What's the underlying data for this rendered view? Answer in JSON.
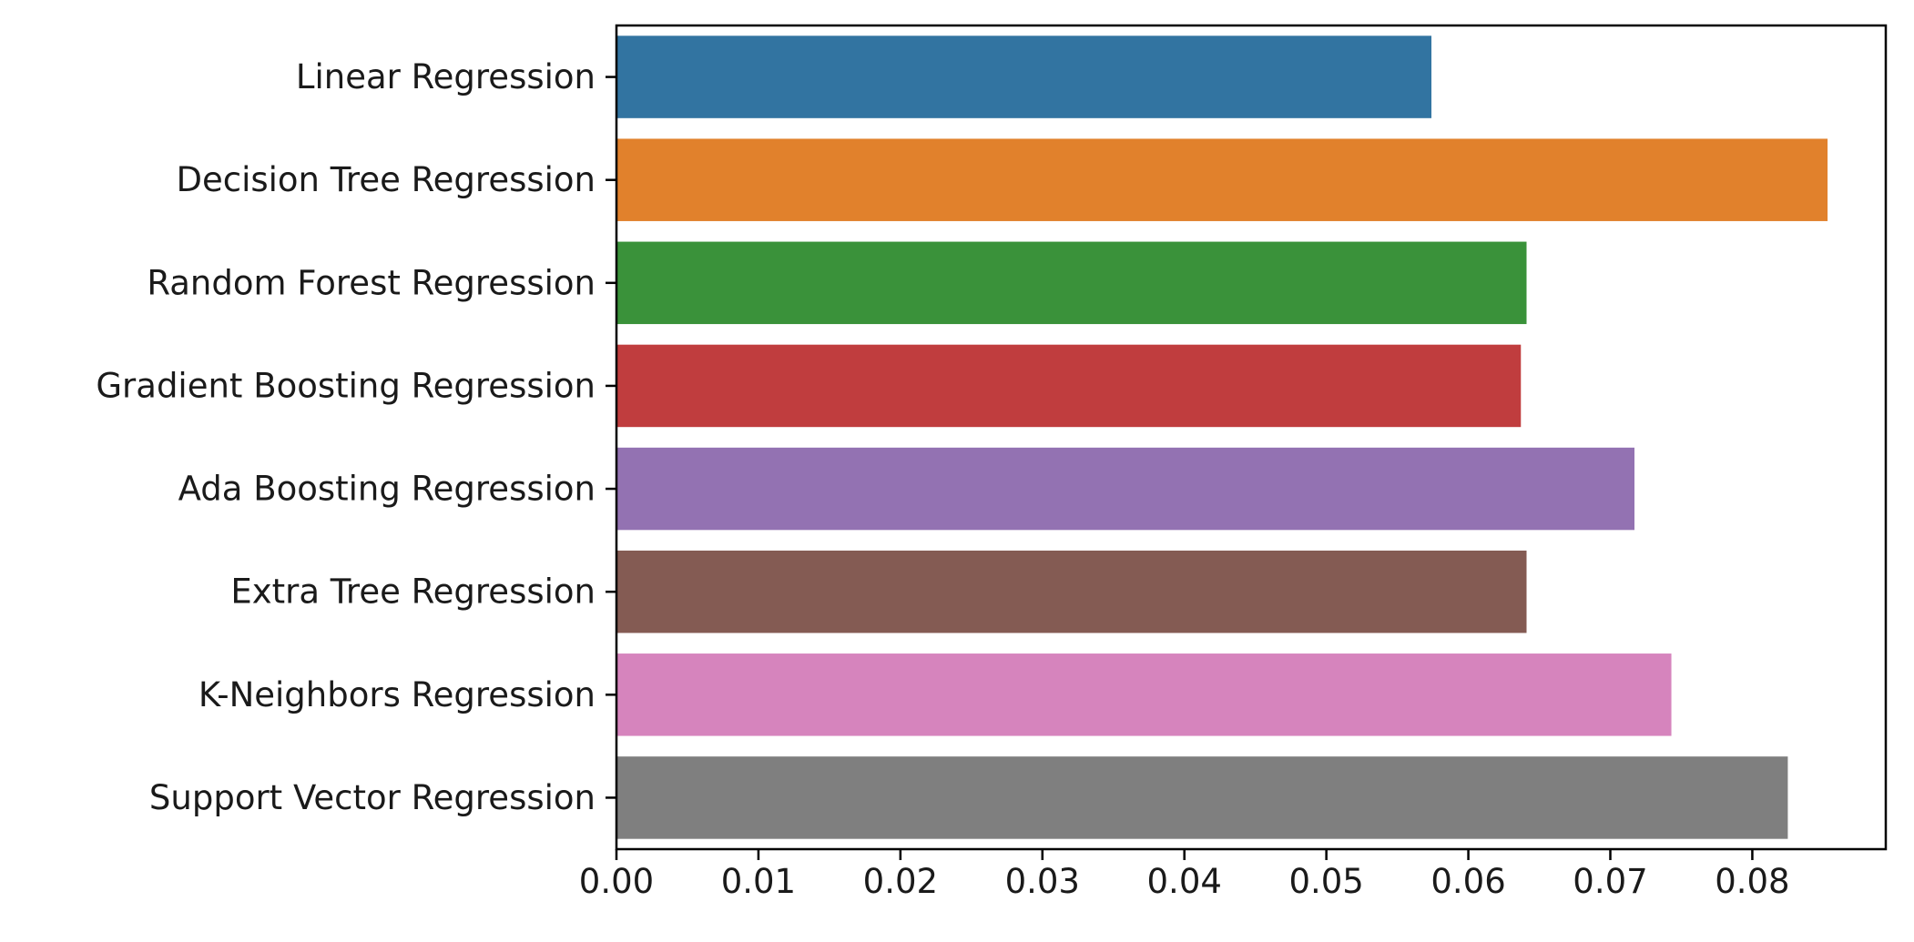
{
  "chart_data": {
    "type": "bar",
    "orientation": "horizontal",
    "title": "",
    "xlabel": "",
    "ylabel": "",
    "categories": [
      "Linear Regression",
      "Decision Tree Regression",
      "Random Forest Regression",
      "Gradient Boosting Regression",
      "Ada Boosting Regression",
      "Extra Tree Regression",
      "K-Neighbors Regression",
      "Support Vector Regression"
    ],
    "values": [
      0.0574,
      0.0853,
      0.0641,
      0.0637,
      0.0717,
      0.0641,
      0.0743,
      0.0825
    ],
    "colors": [
      "#3274a1",
      "#e1812c",
      "#3a923a",
      "#c03d3e",
      "#9372b2",
      "#845b53",
      "#d684bd",
      "#7f7f7f"
    ],
    "xlim": [
      0,
      0.0894
    ],
    "xticks": [
      0.0,
      0.01,
      0.02,
      0.03,
      0.04,
      0.05,
      0.06,
      0.07,
      0.08
    ],
    "xtick_labels": [
      "0.00",
      "0.01",
      "0.02",
      "0.03",
      "0.04",
      "0.05",
      "0.06",
      "0.07",
      "0.08"
    ],
    "grid": false,
    "legend": "none"
  }
}
